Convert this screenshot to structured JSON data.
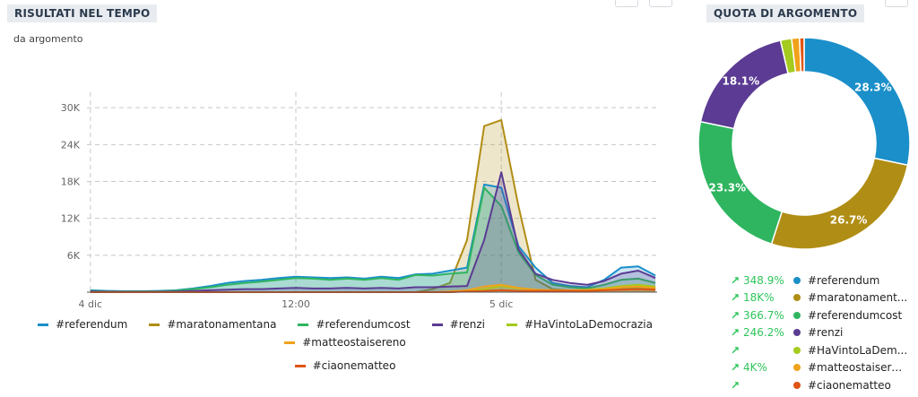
{
  "left_panel": {
    "title": "RISULTATI NEL TEMPO",
    "subtitle": "da argomento"
  },
  "right_panel": {
    "title": "QUOTA DI ARGOMENTO"
  },
  "series_meta": [
    {
      "key": "referendum",
      "name": "#referendum",
      "color": "#1a8fc9"
    },
    {
      "key": "maratonamentana",
      "name": "#maratonamentana",
      "color": "#b08d14"
    },
    {
      "key": "referendumcost",
      "name": "#referendumcost",
      "color": "#2fb560"
    },
    {
      "key": "renzi",
      "name": "#renzi",
      "color": "#5b3b93"
    },
    {
      "key": "havinto",
      "name": "#HaVintoLaDemocrazia",
      "color": "#a4cb1e"
    },
    {
      "key": "matteostaisereno",
      "name": "#matteostaisereno",
      "color": "#f0a21b"
    },
    {
      "key": "ciaonematteo",
      "name": "#ciaonematteo",
      "color": "#e05415"
    }
  ],
  "share_legend": [
    {
      "change": "348.9%",
      "name": "#referendum",
      "color": "#1a8fc9"
    },
    {
      "change": "18K%",
      "name": "#maratonament...",
      "color": "#b08d14"
    },
    {
      "change": "366.7%",
      "name": "#referendumcost",
      "color": "#2fb560"
    },
    {
      "change": "246.2%",
      "name": "#renzi",
      "color": "#5b3b93"
    },
    {
      "change": "",
      "name": "#HaVintoLaDem...",
      "color": "#a4cb1e"
    },
    {
      "change": "4K%",
      "name": "#matteostaisereno",
      "color": "#f0a21b"
    },
    {
      "change": "",
      "name": "#ciaonematteo",
      "color": "#e05415"
    }
  ],
  "chart_data": [
    {
      "type": "area",
      "title": "RISULTATI NEL TEMPO",
      "subtitle": "da argomento",
      "xlabel": "",
      "ylabel": "",
      "x_tick_labels": [
        "4 dic",
        "12:00",
        "5 dic"
      ],
      "x_tick_hours": [
        0,
        12,
        24
      ],
      "x_range_hours": [
        -0.2,
        33.1
      ],
      "y_ticks": [
        6000,
        12000,
        18000,
        24000,
        30000
      ],
      "y_tick_labels": [
        "6K",
        "12K",
        "18K",
        "24K",
        "30K"
      ],
      "ylim": [
        0,
        30000
      ],
      "grid": true,
      "legend": "bottom",
      "x_hours": [
        0,
        1,
        2,
        3,
        4,
        5,
        6,
        7,
        8,
        9,
        10,
        11,
        12,
        13,
        14,
        15,
        16,
        17,
        18,
        19,
        20,
        21,
        22,
        23,
        24,
        25,
        26,
        27,
        28,
        29,
        30,
        31,
        32,
        33
      ],
      "series": [
        {
          "name": "#referendum",
          "values": [
            300,
            200,
            150,
            150,
            200,
            300,
            600,
            1000,
            1500,
            1800,
            2000,
            2300,
            2500,
            2400,
            2300,
            2400,
            2200,
            2500,
            2300,
            2900,
            3000,
            3500,
            4000,
            17500,
            17000,
            7500,
            4000,
            1500,
            1000,
            800,
            2000,
            4000,
            4200,
            2700
          ]
        },
        {
          "name": "#maratonamentana",
          "values": [
            0,
            0,
            0,
            0,
            0,
            0,
            0,
            0,
            0,
            0,
            0,
            0,
            0,
            0,
            0,
            0,
            0,
            0,
            0,
            0,
            500,
            1500,
            8500,
            27000,
            28000,
            14000,
            2000,
            500,
            300,
            200,
            300,
            500,
            800,
            600
          ]
        },
        {
          "name": "#referendumcost",
          "values": [
            200,
            150,
            100,
            100,
            150,
            250,
            500,
            800,
            1200,
            1500,
            1700,
            2000,
            2300,
            2200,
            2000,
            2200,
            2000,
            2300,
            2000,
            2800,
            2700,
            3000,
            3200,
            17000,
            14000,
            6500,
            2800,
            1200,
            800,
            600,
            1200,
            2000,
            2200,
            1500
          ]
        },
        {
          "name": "#renzi",
          "values": [
            100,
            80,
            60,
            60,
            80,
            100,
            200,
            300,
            400,
            500,
            500,
            600,
            700,
            600,
            600,
            700,
            600,
            700,
            600,
            800,
            800,
            900,
            1000,
            8500,
            19500,
            7000,
            3000,
            2000,
            1500,
            1200,
            1800,
            3000,
            3500,
            2300
          ]
        },
        {
          "name": "#HaVintoLaDemocrazia",
          "values": [
            0,
            0,
            0,
            0,
            0,
            0,
            0,
            0,
            0,
            0,
            0,
            0,
            0,
            0,
            0,
            0,
            0,
            0,
            0,
            0,
            0,
            0,
            200,
            500,
            1000,
            600,
            400,
            300,
            300,
            400,
            600,
            1000,
            1200,
            900
          ]
        },
        {
          "name": "#matteostaisereno",
          "values": [
            0,
            0,
            0,
            0,
            0,
            0,
            0,
            0,
            0,
            0,
            0,
            0,
            0,
            0,
            0,
            0,
            0,
            0,
            0,
            0,
            0,
            100,
            300,
            900,
            1200,
            700,
            400,
            300,
            300,
            300,
            500,
            800,
            900,
            700
          ]
        },
        {
          "name": "#ciaonematteo",
          "values": [
            0,
            0,
            0,
            0,
            0,
            0,
            0,
            0,
            0,
            0,
            0,
            0,
            0,
            0,
            0,
            0,
            0,
            0,
            0,
            0,
            0,
            0,
            100,
            200,
            300,
            200,
            200,
            200,
            200,
            200,
            300,
            400,
            500,
            400
          ]
        }
      ]
    },
    {
      "type": "pie",
      "title": "QUOTA DI ARGOMENTO",
      "donut": true,
      "start_angle_deg": 0,
      "labels": [
        "#referendum",
        "#maratonamentana",
        "#referendumcost",
        "#renzi",
        "#HaVintoLaDemocrazia",
        "#matteostaisereno",
        "#ciaonematteo"
      ],
      "values": [
        28.3,
        26.7,
        23.3,
        18.1,
        1.7,
        1.2,
        0.7
      ],
      "value_labels": [
        "28.3%",
        "26.7%",
        "23.3%",
        "18.1%",
        "",
        "",
        ""
      ]
    }
  ]
}
